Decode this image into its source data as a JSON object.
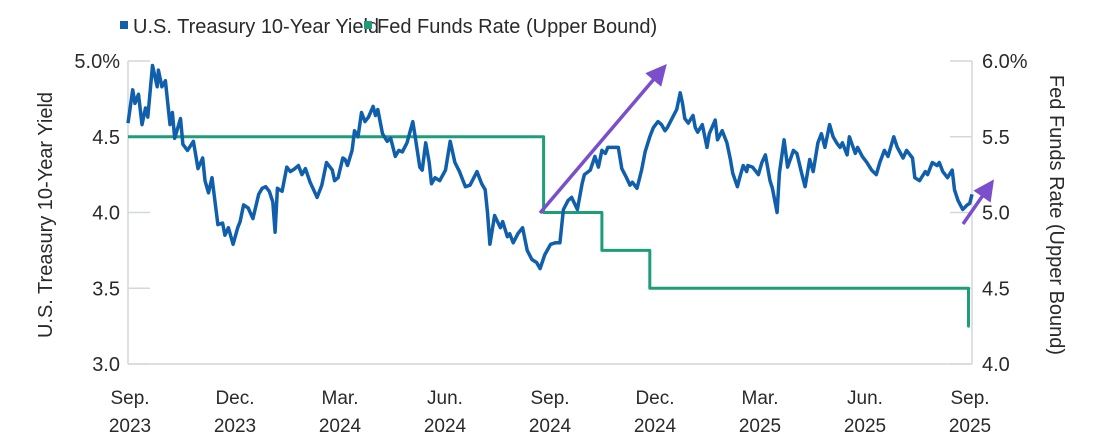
{
  "chart_data": {
    "type": "line",
    "title": "",
    "legend": {
      "placement": "top-left",
      "entries": [
        "U.S. Treasury 10-Year Yield",
        "Fed Funds Rate (Upper Bound)"
      ]
    },
    "x_ticks": [
      {
        "month": "Sep.",
        "year": "2023"
      },
      {
        "month": "Dec.",
        "year": "2023"
      },
      {
        "month": "Mar.",
        "year": "2024"
      },
      {
        "month": "Jun.",
        "year": "2024"
      },
      {
        "month": "Sep.",
        "year": "2024"
      },
      {
        "month": "Dec.",
        "year": "2024"
      },
      {
        "month": "Mar.",
        "year": "2025"
      },
      {
        "month": "Jun.",
        "year": "2025"
      },
      {
        "month": "Sep.",
        "year": "2025"
      }
    ],
    "xlim": [
      "2023-09-28",
      "2025-09-20"
    ],
    "y_left": {
      "label": "U.S. Treasury 10-Year Yield",
      "range": [
        3.0,
        5.0
      ],
      "ticks": [
        "3.0",
        "3.5",
        "4.0",
        "4.5",
        "5.0%"
      ]
    },
    "y_right": {
      "label": "Fed Funds Rate (Upper Bound)",
      "range": [
        4.0,
        6.0
      ],
      "ticks": [
        "4.0",
        "4.5",
        "5.0",
        "5.5",
        "6.0%"
      ]
    },
    "grid": false,
    "annotations": [
      {
        "type": "arrow",
        "color": "#7B4FCB",
        "meaning": "rising yield after first rate cut"
      },
      {
        "type": "arrow",
        "color": "#7B4FCB",
        "meaning": "rising yield at latest rate cut"
      }
    ],
    "series": [
      {
        "name": "U.S. Treasury 10-Year Yield",
        "axis": "left",
        "color": "#0F5FAD",
        "points": [
          [
            "2023-09-28",
            4.59
          ],
          [
            "2023-10-02",
            4.81
          ],
          [
            "2023-10-04",
            4.72
          ],
          [
            "2023-10-07",
            4.78
          ],
          [
            "2023-10-10",
            4.58
          ],
          [
            "2023-10-13",
            4.69
          ],
          [
            "2023-10-15",
            4.63
          ],
          [
            "2023-10-19",
            4.97
          ],
          [
            "2023-10-23",
            4.83
          ],
          [
            "2023-10-24",
            4.94
          ],
          [
            "2023-10-27",
            4.83
          ],
          [
            "2023-10-30",
            4.87
          ],
          [
            "2023-11-03",
            4.58
          ],
          [
            "2023-11-05",
            4.66
          ],
          [
            "2023-11-07",
            4.49
          ],
          [
            "2023-11-12",
            4.62
          ],
          [
            "2023-11-14",
            4.45
          ],
          [
            "2023-11-18",
            4.41
          ],
          [
            "2023-11-23",
            4.47
          ],
          [
            "2023-11-27",
            4.29
          ],
          [
            "2023-12-01",
            4.36
          ],
          [
            "2023-12-03",
            4.21
          ],
          [
            "2023-12-06",
            4.13
          ],
          [
            "2023-12-09",
            4.23
          ],
          [
            "2023-12-14",
            3.92
          ],
          [
            "2023-12-18",
            3.93
          ],
          [
            "2023-12-20",
            3.85
          ],
          [
            "2023-12-23",
            3.9
          ],
          [
            "2023-12-27",
            3.79
          ],
          [
            "2023-12-31",
            3.9
          ],
          [
            "2024-01-02",
            3.94
          ],
          [
            "2024-01-05",
            4.05
          ],
          [
            "2024-01-09",
            4.03
          ],
          [
            "2024-01-13",
            3.96
          ],
          [
            "2024-01-18",
            4.12
          ],
          [
            "2024-01-21",
            4.16
          ],
          [
            "2024-01-24",
            4.17
          ],
          [
            "2024-01-27",
            4.14
          ],
          [
            "2024-01-30",
            4.07
          ],
          [
            "2024-02-01",
            3.87
          ],
          [
            "2024-02-03",
            4.16
          ],
          [
            "2024-02-07",
            4.14
          ],
          [
            "2024-02-11",
            4.3
          ],
          [
            "2024-02-14",
            4.27
          ],
          [
            "2024-02-18",
            4.29
          ],
          [
            "2024-02-21",
            4.31
          ],
          [
            "2024-02-24",
            4.25
          ],
          [
            "2024-02-27",
            4.29
          ],
          [
            "2024-03-02",
            4.2
          ],
          [
            "2024-03-08",
            4.1
          ],
          [
            "2024-03-12",
            4.18
          ],
          [
            "2024-03-16",
            4.33
          ],
          [
            "2024-03-21",
            4.28
          ],
          [
            "2024-03-23",
            4.21
          ],
          [
            "2024-03-26",
            4.23
          ],
          [
            "2024-03-30",
            4.36
          ],
          [
            "2024-04-01",
            4.35
          ],
          [
            "2024-04-03",
            4.31
          ],
          [
            "2024-04-07",
            4.41
          ],
          [
            "2024-04-09",
            4.54
          ],
          [
            "2024-04-12",
            4.5
          ],
          [
            "2024-04-15",
            4.66
          ],
          [
            "2024-04-18",
            4.6
          ],
          [
            "2024-04-21",
            4.63
          ],
          [
            "2024-04-25",
            4.7
          ],
          [
            "2024-04-27",
            4.64
          ],
          [
            "2024-04-29",
            4.68
          ],
          [
            "2024-05-03",
            4.52
          ],
          [
            "2024-05-07",
            4.47
          ],
          [
            "2024-05-10",
            4.49
          ],
          [
            "2024-05-14",
            4.37
          ],
          [
            "2024-05-17",
            4.41
          ],
          [
            "2024-05-20",
            4.4
          ],
          [
            "2024-05-24",
            4.46
          ],
          [
            "2024-05-29",
            4.6
          ],
          [
            "2024-05-31",
            4.5
          ],
          [
            "2024-06-04",
            4.3
          ],
          [
            "2024-06-06",
            4.28
          ],
          [
            "2024-06-09",
            4.46
          ],
          [
            "2024-06-12",
            4.33
          ],
          [
            "2024-06-14",
            4.19
          ],
          [
            "2024-06-17",
            4.23
          ],
          [
            "2024-06-21",
            4.21
          ],
          [
            "2024-06-26",
            4.28
          ],
          [
            "2024-06-30",
            4.47
          ],
          [
            "2024-07-04",
            4.33
          ],
          [
            "2024-07-08",
            4.27
          ],
          [
            "2024-07-13",
            4.17
          ],
          [
            "2024-07-17",
            4.18
          ],
          [
            "2024-07-23",
            4.27
          ],
          [
            "2024-07-27",
            4.19
          ],
          [
            "2024-07-30",
            4.15
          ],
          [
            "2024-08-01",
            4.0
          ],
          [
            "2024-08-03",
            3.79
          ],
          [
            "2024-08-07",
            3.98
          ],
          [
            "2024-08-12",
            3.9
          ],
          [
            "2024-08-14",
            3.94
          ],
          [
            "2024-08-18",
            3.84
          ],
          [
            "2024-08-20",
            3.86
          ],
          [
            "2024-08-23",
            3.8
          ],
          [
            "2024-08-27",
            3.86
          ],
          [
            "2024-08-31",
            3.9
          ],
          [
            "2024-09-04",
            3.75
          ],
          [
            "2024-09-08",
            3.69
          ],
          [
            "2024-09-12",
            3.67
          ],
          [
            "2024-09-15",
            3.63
          ],
          [
            "2024-09-19",
            3.72
          ],
          [
            "2024-09-24",
            3.79
          ],
          [
            "2024-09-28",
            3.8
          ],
          [
            "2024-10-02",
            3.8
          ],
          [
            "2024-10-05",
            4.02
          ],
          [
            "2024-10-09",
            4.08
          ],
          [
            "2024-10-12",
            4.1
          ],
          [
            "2024-10-17",
            4.02
          ],
          [
            "2024-10-21",
            4.19
          ],
          [
            "2024-10-23",
            4.25
          ],
          [
            "2024-10-28",
            4.28
          ],
          [
            "2024-11-01",
            4.37
          ],
          [
            "2024-11-04",
            4.3
          ],
          [
            "2024-11-07",
            4.41
          ],
          [
            "2024-11-10",
            4.39
          ],
          [
            "2024-11-12",
            4.43
          ],
          [
            "2024-11-16",
            4.43
          ],
          [
            "2024-11-21",
            4.43
          ],
          [
            "2024-11-24",
            4.29
          ],
          [
            "2024-11-28",
            4.23
          ],
          [
            "2024-12-01",
            4.18
          ],
          [
            "2024-12-03",
            4.2
          ],
          [
            "2024-12-07",
            4.16
          ],
          [
            "2024-12-11",
            4.28
          ],
          [
            "2024-12-14",
            4.4
          ],
          [
            "2024-12-18",
            4.5
          ],
          [
            "2024-12-21",
            4.56
          ],
          [
            "2024-12-25",
            4.6
          ],
          [
            "2024-12-28",
            4.58
          ],
          [
            "2024-12-31",
            4.54
          ],
          [
            "2025-01-02",
            4.56
          ],
          [
            "2025-01-06",
            4.62
          ],
          [
            "2025-01-10",
            4.68
          ],
          [
            "2025-01-13",
            4.79
          ],
          [
            "2025-01-15",
            4.72
          ],
          [
            "2025-01-17",
            4.62
          ],
          [
            "2025-01-20",
            4.59
          ],
          [
            "2025-01-24",
            4.64
          ],
          [
            "2025-01-26",
            4.56
          ],
          [
            "2025-01-28",
            4.53
          ],
          [
            "2025-02-01",
            4.58
          ],
          [
            "2025-02-05",
            4.43
          ],
          [
            "2025-02-07",
            4.52
          ],
          [
            "2025-02-12",
            4.61
          ],
          [
            "2025-02-14",
            4.48
          ],
          [
            "2025-02-18",
            4.54
          ],
          [
            "2025-02-22",
            4.46
          ],
          [
            "2025-02-25",
            4.35
          ],
          [
            "2025-02-27",
            4.26
          ],
          [
            "2025-03-03",
            4.17
          ],
          [
            "2025-03-05",
            4.23
          ],
          [
            "2025-03-08",
            4.31
          ],
          [
            "2025-03-11",
            4.27
          ],
          [
            "2025-03-12",
            4.31
          ],
          [
            "2025-03-16",
            4.3
          ],
          [
            "2025-03-21",
            4.25
          ],
          [
            "2025-03-24",
            4.33
          ],
          [
            "2025-03-27",
            4.38
          ],
          [
            "2025-03-31",
            4.21
          ],
          [
            "2025-04-02",
            4.16
          ],
          [
            "2025-04-06",
            4.0
          ],
          [
            "2025-04-08",
            4.26
          ],
          [
            "2025-04-12",
            4.48
          ],
          [
            "2025-04-15",
            4.3
          ],
          [
            "2025-04-20",
            4.41
          ],
          [
            "2025-04-23",
            4.39
          ],
          [
            "2025-04-27",
            4.26
          ],
          [
            "2025-04-30",
            4.17
          ],
          [
            "2025-05-04",
            4.35
          ],
          [
            "2025-05-07",
            4.27
          ],
          [
            "2025-05-11",
            4.46
          ],
          [
            "2025-05-14",
            4.52
          ],
          [
            "2025-05-17",
            4.43
          ],
          [
            "2025-05-21",
            4.58
          ],
          [
            "2025-05-24",
            4.5
          ],
          [
            "2025-05-27",
            4.46
          ],
          [
            "2025-05-30",
            4.43
          ],
          [
            "2025-06-01",
            4.46
          ],
          [
            "2025-06-05",
            4.38
          ],
          [
            "2025-06-07",
            4.5
          ],
          [
            "2025-06-12",
            4.39
          ],
          [
            "2025-06-14",
            4.43
          ],
          [
            "2025-06-18",
            4.37
          ],
          [
            "2025-06-22",
            4.33
          ],
          [
            "2025-06-26",
            4.28
          ],
          [
            "2025-06-30",
            4.25
          ],
          [
            "2025-07-03",
            4.33
          ],
          [
            "2025-07-07",
            4.41
          ],
          [
            "2025-07-10",
            4.37
          ],
          [
            "2025-07-15",
            4.5
          ],
          [
            "2025-07-18",
            4.43
          ],
          [
            "2025-07-23",
            4.36
          ],
          [
            "2025-07-26",
            4.41
          ],
          [
            "2025-07-31",
            4.36
          ],
          [
            "2025-08-02",
            4.23
          ],
          [
            "2025-08-06",
            4.21
          ],
          [
            "2025-08-11",
            4.27
          ],
          [
            "2025-08-13",
            4.25
          ],
          [
            "2025-08-17",
            4.33
          ],
          [
            "2025-08-21",
            4.31
          ],
          [
            "2025-08-23",
            4.33
          ],
          [
            "2025-08-26",
            4.27
          ],
          [
            "2025-08-30",
            4.23
          ],
          [
            "2025-09-03",
            4.28
          ],
          [
            "2025-09-05",
            4.15
          ],
          [
            "2025-09-08",
            4.08
          ],
          [
            "2025-09-12",
            4.02
          ],
          [
            "2025-09-16",
            4.05
          ],
          [
            "2025-09-18",
            4.06
          ],
          [
            "2025-09-20",
            4.12
          ]
        ]
      },
      {
        "name": "Fed Funds Rate (Upper Bound)",
        "axis": "right",
        "color": "#1E9E78",
        "step": true,
        "points": [
          [
            "2023-09-28",
            5.5
          ],
          [
            "2024-09-18",
            5.0
          ],
          [
            "2024-11-07",
            4.75
          ],
          [
            "2024-12-18",
            4.5
          ],
          [
            "2025-09-17",
            4.25
          ],
          [
            "2025-09-18",
            4.25
          ]
        ]
      }
    ]
  }
}
